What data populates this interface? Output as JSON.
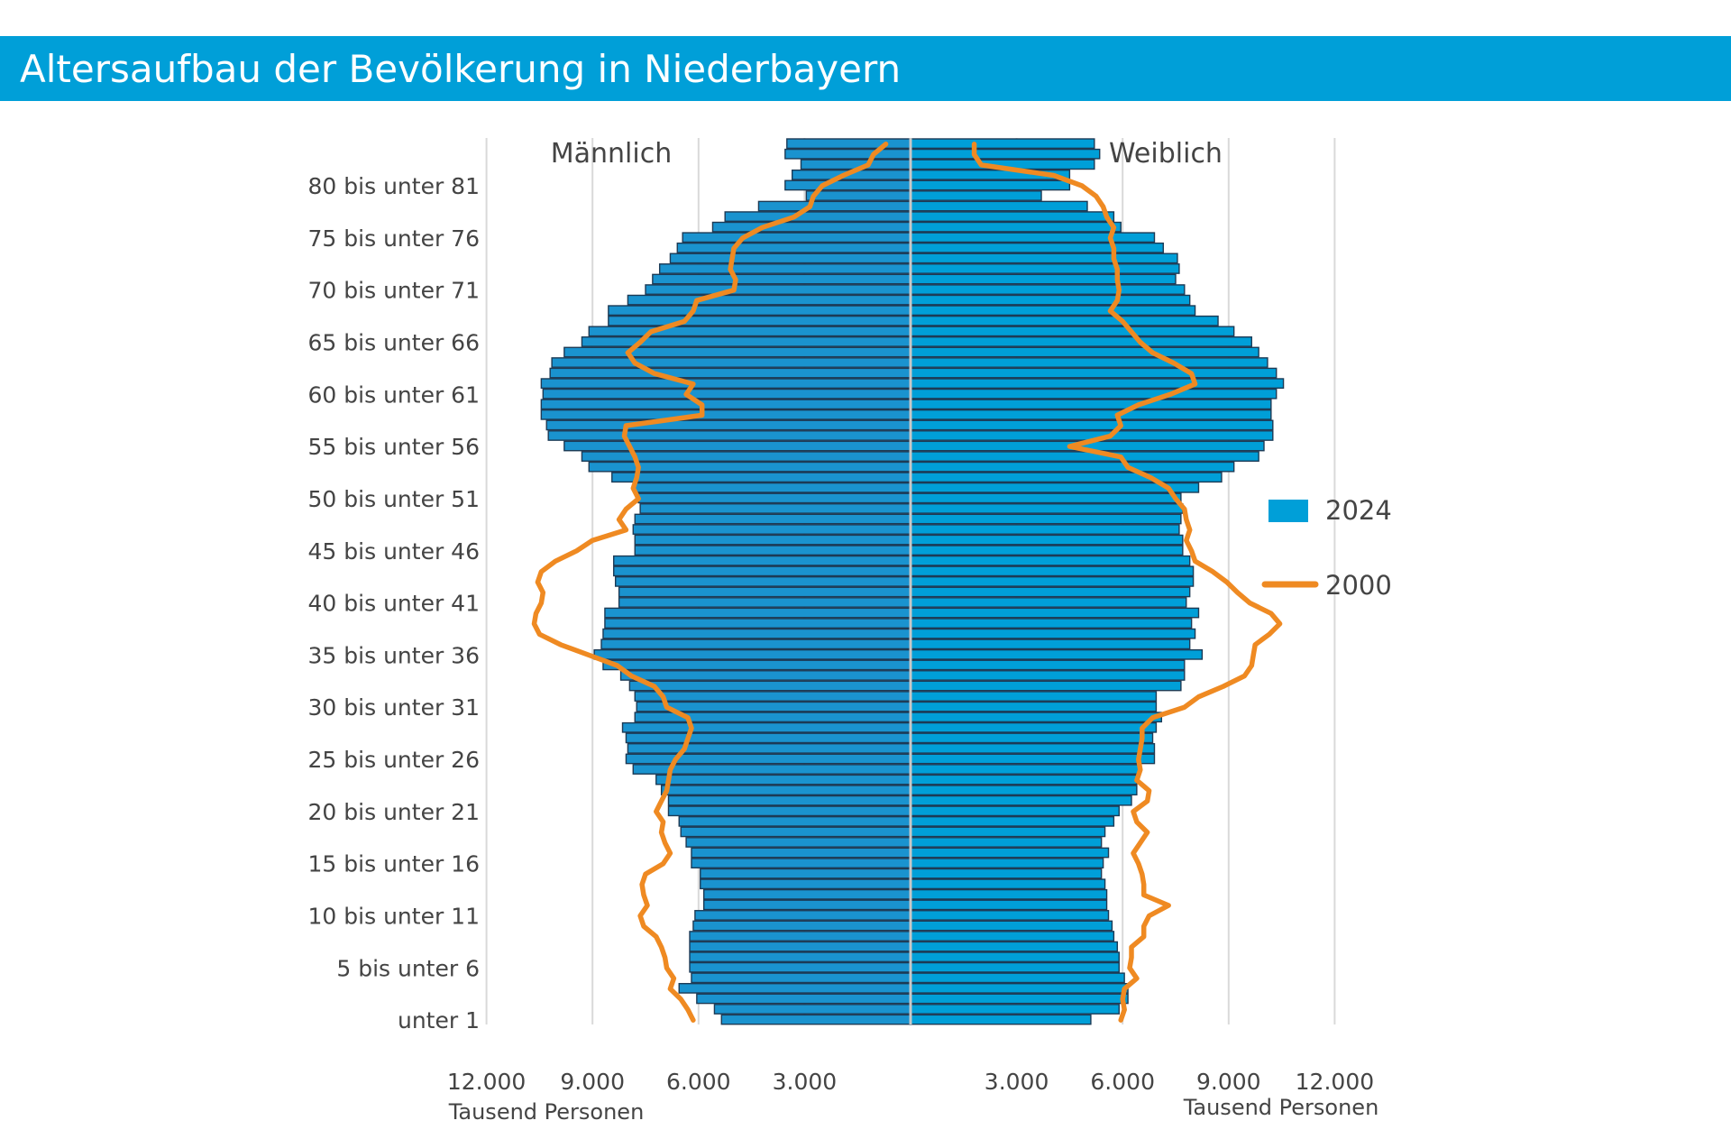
{
  "header": {
    "title": "Altersaufbau der Bevölkerung in Niederbayern"
  },
  "chart_data": {
    "type": "population-pyramid",
    "sides": {
      "left": "Männlich",
      "right": "Weiblich"
    },
    "x_ticks": [
      "12.000",
      "9.000",
      "6.000",
      "3.000"
    ],
    "x_tick_values": [
      12000,
      9000,
      6000,
      3000
    ],
    "x_unit": "Tausend Personen",
    "xlim": [
      0,
      12000
    ],
    "age_label_values": [
      80,
      75,
      70,
      65,
      60,
      55,
      50,
      45,
      40,
      35,
      30,
      25,
      20,
      15,
      10,
      5,
      0
    ],
    "age_labels": [
      "80 bis unter 81",
      "75 bis unter 76",
      "70 bis unter 71",
      "65 bis unter 66",
      "60 bis unter 61",
      "55 bis unter 56",
      "50 bis unter 51",
      "45 bis unter 46",
      "40 bis unter 41",
      "35 bis unter 36",
      "30 bis unter 31",
      "25 bis unter 26",
      "20 bis unter 21",
      "15 bis unter 16",
      "10 bis unter 11",
      "5 bis unter 6",
      "unter 1"
    ],
    "ages": [
      0,
      1,
      2,
      3,
      4,
      5,
      6,
      7,
      8,
      9,
      10,
      11,
      12,
      13,
      14,
      15,
      16,
      17,
      18,
      19,
      20,
      21,
      22,
      23,
      24,
      25,
      26,
      27,
      28,
      29,
      30,
      31,
      32,
      33,
      34,
      35,
      36,
      37,
      38,
      39,
      40,
      41,
      42,
      43,
      44,
      45,
      46,
      47,
      48,
      49,
      50,
      51,
      52,
      53,
      54,
      55,
      56,
      57,
      58,
      59,
      60,
      61,
      62,
      63,
      64,
      65,
      66,
      67,
      68,
      69,
      70,
      71,
      72,
      73,
      74,
      75,
      76,
      77,
      78,
      79,
      80,
      81,
      82,
      83,
      84
    ],
    "series": [
      {
        "name": "2024",
        "color": "#009fd8",
        "male": [
          5350,
          5550,
          6050,
          6550,
          6200,
          6250,
          6250,
          6250,
          6250,
          6150,
          6100,
          5850,
          5850,
          5950,
          5950,
          6200,
          6200,
          6350,
          6500,
          6550,
          6850,
          6850,
          7050,
          7200,
          7850,
          8050,
          8000,
          8050,
          8150,
          7800,
          7750,
          7800,
          7950,
          8200,
          8700,
          8950,
          8750,
          8700,
          8650,
          8650,
          8250,
          8250,
          8350,
          8400,
          8400,
          7800,
          7800,
          7850,
          7800,
          7650,
          7700,
          7800,
          8450,
          9100,
          9300,
          9800,
          10250,
          10300,
          10450,
          10450,
          10400,
          10450,
          10200,
          10150,
          9800,
          9300,
          9100,
          8550,
          8550,
          8000,
          7500,
          7300,
          7100,
          6800,
          6600,
          6450,
          5600,
          5250,
          4300,
          2950,
          3550,
          3350,
          3100,
          3550,
          3500
        ],
        "female": [
          5100,
          5900,
          6150,
          6150,
          6050,
          5900,
          5900,
          5850,
          5750,
          5700,
          5600,
          5550,
          5550,
          5500,
          5400,
          5450,
          5600,
          5400,
          5500,
          5750,
          5900,
          6250,
          6400,
          6400,
          6500,
          6900,
          6900,
          6850,
          6950,
          7100,
          6950,
          6950,
          7650,
          7750,
          7750,
          8250,
          7900,
          8050,
          7950,
          8150,
          7800,
          7900,
          8000,
          8000,
          7900,
          7700,
          7700,
          7600,
          7650,
          7700,
          7650,
          8150,
          8800,
          9150,
          9850,
          10000,
          10250,
          10250,
          10200,
          10200,
          10350,
          10550,
          10350,
          10100,
          9850,
          9650,
          9150,
          8700,
          8050,
          7900,
          7750,
          7500,
          7600,
          7550,
          7150,
          6900,
          5950,
          5750,
          5000,
          3700,
          4500,
          4500,
          5200,
          5350,
          5200
        ]
      },
      {
        "name": "2000",
        "color": "#ef8a22",
        "male": [
          6150,
          6300,
          6500,
          6800,
          6700,
          6900,
          6950,
          7050,
          7200,
          7550,
          7650,
          7450,
          7550,
          7600,
          7500,
          7000,
          6800,
          6950,
          7050,
          7000,
          7200,
          7050,
          6900,
          6850,
          6800,
          6650,
          6400,
          6300,
          6200,
          6300,
          6900,
          7000,
          7250,
          7900,
          8300,
          9100,
          9900,
          10500,
          10650,
          10600,
          10450,
          10400,
          10550,
          10450,
          10050,
          9450,
          9000,
          8050,
          8250,
          8050,
          7700,
          7850,
          7750,
          7700,
          7800,
          7950,
          8100,
          8050,
          5900,
          5900,
          6350,
          6150,
          7250,
          7800,
          8000,
          7650,
          7350,
          6400,
          6150,
          6050,
          5000,
          4950,
          5100,
          5050,
          5000,
          4750,
          4200,
          3300,
          2850,
          2750,
          2500,
          1900,
          1200,
          1050,
          700
        ],
        "female": [
          5950,
          6050,
          6000,
          6050,
          6400,
          6200,
          6250,
          6250,
          6600,
          6600,
          6750,
          7300,
          6600,
          6600,
          6550,
          6450,
          6300,
          6500,
          6700,
          6400,
          6300,
          6700,
          6750,
          6400,
          6500,
          6450,
          6500,
          6550,
          6550,
          6850,
          7750,
          8150,
          8850,
          9450,
          9650,
          9700,
          9750,
          10150,
          10450,
          10200,
          9600,
          9250,
          8950,
          8550,
          8050,
          7950,
          7800,
          7900,
          7800,
          7750,
          7500,
          7300,
          6800,
          6150,
          5950,
          4500,
          5650,
          5950,
          5850,
          6450,
          7350,
          8050,
          7950,
          7450,
          6850,
          6500,
          6250,
          6000,
          5650,
          5850,
          5900,
          5850,
          5850,
          5750,
          5750,
          5650,
          5750,
          5550,
          5450,
          5250,
          4850,
          4050,
          2000,
          1800,
          1800
        ]
      }
    ],
    "legend": [
      {
        "name": "2024",
        "marker": "box"
      },
      {
        "name": "2000",
        "marker": "line"
      }
    ],
    "legend_position": "right",
    "grid": true
  }
}
